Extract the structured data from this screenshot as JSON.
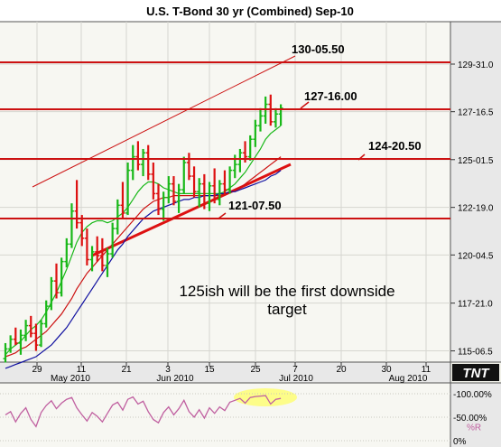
{
  "chart_data": {
    "type": "ohlc",
    "title": "U.S. T-Bond 30 yr (Combined) Sep-10",
    "y_axis": {
      "ticks": [
        {
          "label": "129-31.0",
          "value": 129.97
        },
        {
          "label": "127-16.5",
          "value": 127.52
        },
        {
          "label": "125-01.5",
          "value": 125.05
        },
        {
          "label": "122-19.0",
          "value": 122.59
        },
        {
          "label": "120-04.5",
          "value": 120.14
        },
        {
          "label": "117-21.0",
          "value": 117.66
        },
        {
          "label": "115-06.5",
          "value": 115.2
        }
      ]
    },
    "x_axis": {
      "day_labels": [
        "29",
        "11",
        "21",
        "3",
        "15",
        "25",
        "7",
        "20",
        "30",
        "11"
      ],
      "month_labels": [
        "May 2010",
        "Jun 2010",
        "Jul 2010",
        "Aug 2010"
      ]
    },
    "series": [
      {
        "name": "bars",
        "values": [
          [
            114.8,
            115.6,
            114.6,
            115.3
          ],
          [
            115.3,
            116.0,
            115.1,
            115.8
          ],
          [
            115.8,
            116.4,
            115.5,
            115.6
          ],
          [
            115.6,
            116.3,
            115.0,
            116.0
          ],
          [
            116.0,
            116.8,
            115.7,
            116.5
          ],
          [
            116.5,
            117.0,
            115.9,
            116.1
          ],
          [
            116.1,
            116.6,
            115.2,
            115.5
          ],
          [
            115.5,
            116.8,
            115.4,
            116.6
          ],
          [
            116.6,
            117.8,
            116.4,
            117.5
          ],
          [
            117.5,
            119.0,
            117.3,
            118.8
          ],
          [
            118.8,
            119.7,
            117.9,
            118.2
          ],
          [
            118.2,
            120.0,
            118.0,
            119.8
          ],
          [
            119.8,
            121.0,
            119.5,
            120.7
          ],
          [
            120.7,
            122.8,
            120.5,
            122.4
          ],
          [
            122.4,
            124.0,
            121.5,
            121.8
          ],
          [
            121.8,
            122.2,
            120.6,
            121.0
          ],
          [
            121.0,
            121.5,
            119.6,
            119.9
          ],
          [
            119.9,
            120.6,
            119.3,
            120.3
          ],
          [
            120.3,
            121.1,
            119.8,
            120.1
          ],
          [
            120.1,
            121.0,
            119.3,
            119.6
          ],
          [
            119.6,
            120.5,
            119.0,
            120.2
          ],
          [
            120.2,
            121.8,
            120.0,
            121.5
          ],
          [
            121.5,
            123.0,
            121.2,
            122.7
          ],
          [
            122.7,
            123.9,
            122.0,
            122.3
          ],
          [
            122.3,
            124.9,
            122.2,
            124.5
          ],
          [
            124.5,
            125.8,
            124.0,
            125.2
          ],
          [
            125.2,
            126.0,
            124.5,
            124.8
          ],
          [
            124.8,
            125.6,
            124.2,
            125.4
          ],
          [
            125.4,
            125.8,
            124.0,
            124.3
          ],
          [
            124.3,
            124.9,
            123.0,
            123.3
          ],
          [
            123.3,
            123.8,
            122.2,
            122.5
          ],
          [
            122.5,
            123.4,
            121.9,
            123.1
          ],
          [
            123.1,
            124.2,
            122.8,
            123.8
          ],
          [
            123.8,
            124.2,
            122.7,
            122.9
          ],
          [
            122.9,
            123.8,
            122.3,
            123.5
          ],
          [
            123.5,
            125.2,
            123.3,
            124.9
          ],
          [
            124.9,
            125.4,
            124.0,
            124.2
          ],
          [
            124.2,
            124.7,
            123.1,
            123.4
          ],
          [
            123.4,
            124.1,
            122.6,
            123.8
          ],
          [
            123.8,
            124.3,
            122.5,
            122.8
          ],
          [
            122.8,
            123.9,
            122.4,
            123.7
          ],
          [
            123.7,
            124.6,
            122.8,
            123.0
          ],
          [
            123.0,
            124.0,
            122.7,
            123.8
          ],
          [
            123.8,
            124.5,
            123.2,
            123.5
          ],
          [
            123.5,
            124.7,
            123.3,
            124.5
          ],
          [
            124.5,
            125.3,
            124.1,
            124.8
          ],
          [
            124.8,
            125.6,
            124.4,
            125.4
          ],
          [
            125.4,
            126.0,
            124.9,
            125.2
          ],
          [
            125.2,
            126.3,
            125.0,
            126.1
          ],
          [
            126.1,
            127.1,
            125.7,
            126.8
          ],
          [
            126.8,
            127.7,
            126.5,
            127.3
          ],
          [
            127.3,
            128.3,
            126.9,
            127.9
          ],
          [
            127.9,
            128.4,
            126.8,
            127.0
          ],
          [
            127.0,
            127.7,
            126.7,
            127.4
          ],
          [
            127.4,
            127.9,
            126.8,
            127.7
          ]
        ]
      },
      {
        "name": "ma1",
        "color": "#18b818",
        "values": [
          115.0,
          115.3,
          115.5,
          115.7,
          116.0,
          116.3,
          116.5,
          116.8,
          117.2,
          117.7,
          118.2,
          118.8,
          119.4,
          120.1,
          120.8,
          121.3,
          121.6,
          121.8,
          121.9,
          121.9,
          121.8,
          121.9,
          122.1,
          122.3,
          122.6,
          123.0,
          123.4,
          123.7,
          123.9,
          123.9,
          123.8,
          123.6,
          123.5,
          123.4,
          123.3,
          123.3,
          123.3,
          123.3,
          123.3,
          123.3,
          123.3,
          123.3,
          123.3,
          123.4,
          123.6,
          123.8,
          124.1,
          124.4,
          124.8,
          125.2,
          125.6,
          126.1,
          126.4,
          126.6,
          126.8
        ]
      },
      {
        "name": "ma2",
        "color": "#cc1111",
        "values": [
          114.9,
          115.0,
          115.1,
          115.3,
          115.4,
          115.6,
          115.8,
          116.0,
          116.2,
          116.5,
          116.8,
          117.1,
          117.5,
          117.9,
          118.4,
          118.8,
          119.2,
          119.5,
          119.8,
          120.1,
          120.4,
          120.7,
          121.0,
          121.3,
          121.6,
          121.9,
          122.2,
          122.5,
          122.7,
          122.9,
          123.0,
          123.1,
          123.1,
          123.2,
          123.2,
          123.2,
          123.2,
          123.2,
          123.2,
          123.2,
          123.2,
          123.2,
          123.2,
          123.3,
          123.4,
          123.5,
          123.6,
          123.8,
          124.0,
          124.2,
          124.4,
          124.6,
          124.8,
          125.0,
          125.2
        ]
      },
      {
        "name": "ma3",
        "color": "#1010a0",
        "values": [
          114.3,
          114.4,
          114.5,
          114.6,
          114.7,
          114.8,
          114.9,
          115.1,
          115.3,
          115.5,
          115.8,
          116.1,
          116.4,
          116.8,
          117.2,
          117.6,
          118.0,
          118.4,
          118.8,
          119.2,
          119.6,
          120.0,
          120.4,
          120.7,
          121.1,
          121.4,
          121.7,
          122.0,
          122.2,
          122.4,
          122.5,
          122.6,
          122.7,
          122.8,
          122.9,
          123.0,
          123.0,
          123.1,
          123.1,
          123.2,
          123.2,
          123.2,
          123.3,
          123.3,
          123.4,
          123.4,
          123.5,
          123.6,
          123.7,
          123.8,
          123.9,
          124.0,
          124.2,
          124.3,
          124.5
        ]
      }
    ],
    "oscillator": {
      "ticks": [
        {
          "label": "-100.00%",
          "value": 100
        },
        {
          "label": "-50.00%",
          "value": 50
        },
        {
          "label": "%R",
          "value": 30
        },
        {
          "label": "0%",
          "value": 0
        }
      ],
      "values": [
        55,
        62,
        40,
        58,
        70,
        45,
        30,
        60,
        75,
        85,
        68,
        80,
        88,
        92,
        70,
        55,
        42,
        60,
        52,
        40,
        58,
        76,
        82,
        65,
        88,
        93,
        78,
        84,
        62,
        45,
        38,
        60,
        72,
        55,
        68,
        86,
        62,
        50,
        66,
        48,
        70,
        58,
        72,
        64,
        82,
        86,
        90,
        80,
        92,
        94,
        95,
        96,
        78,
        88,
        90
      ]
    },
    "annotations": {
      "level_130": "130-05.50",
      "level_127": "127-16.00",
      "level_124": "124-20.50",
      "level_121": "121-07.50",
      "note_line1": "125ish will be the first downside",
      "note_line2": "target"
    },
    "logo": "TNT"
  }
}
